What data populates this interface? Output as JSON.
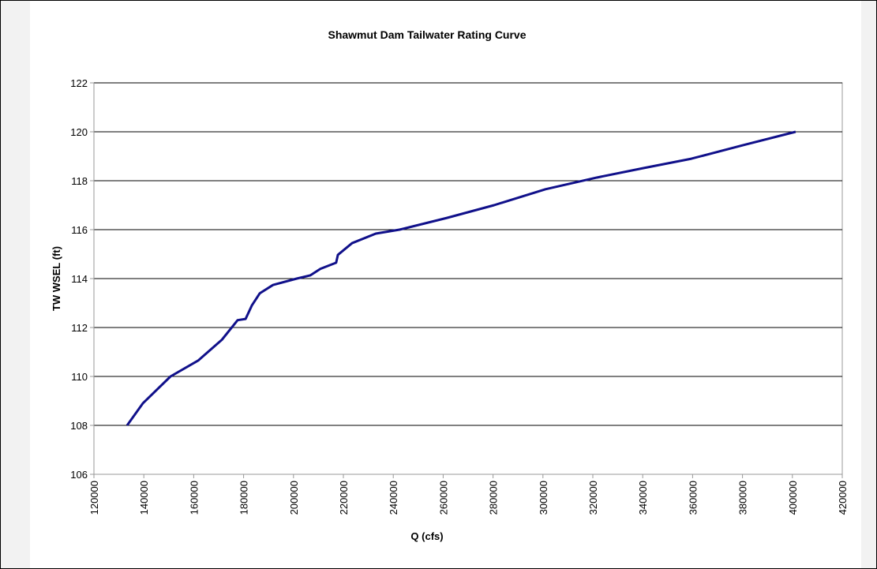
{
  "chart_data": {
    "type": "line",
    "title": "Shawmut Dam Tailwater Rating Curve",
    "x_label": "Q (cfs)",
    "y_label": "TW WSEL (ft)",
    "x": [
      133300,
      139600,
      150700,
      161800,
      171300,
      177600,
      180800,
      183300,
      186500,
      191800,
      201300,
      206700,
      210800,
      217100,
      217800,
      223500,
      233000,
      242500,
      261500,
      280400,
      301000,
      321600,
      340500,
      359500,
      380100,
      401300
    ],
    "series": [
      {
        "name": "TW WSEL",
        "color": "#10108a",
        "values": [
          108,
          108.9,
          110.0,
          110.65,
          111.5,
          112.3,
          112.35,
          112.9,
          113.4,
          113.74,
          114.0,
          114.13,
          114.4,
          114.65,
          114.97,
          115.45,
          115.84,
          116.0,
          116.48,
          117.0,
          117.65,
          118.13,
          118.52,
          118.9,
          119.45,
          120.0
        ]
      }
    ],
    "xlim": [
      120000,
      420000
    ],
    "xticks": [
      120000,
      140000,
      160000,
      180000,
      200000,
      220000,
      240000,
      260000,
      280000,
      300000,
      320000,
      340000,
      360000,
      380000,
      400000,
      420000
    ],
    "ylim": [
      106,
      122
    ],
    "yticks": [
      106,
      108,
      110,
      112,
      114,
      116,
      118,
      120,
      122
    ],
    "grid": true
  }
}
